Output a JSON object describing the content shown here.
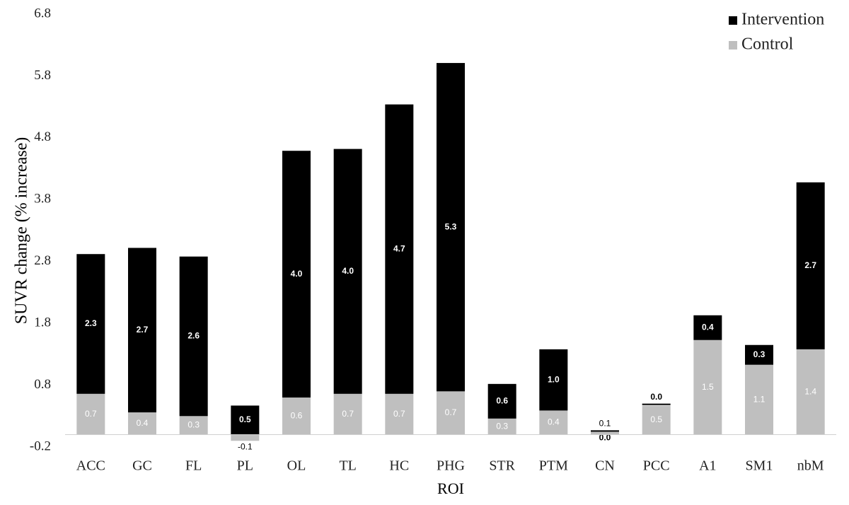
{
  "chart_data": {
    "type": "stacked_bar",
    "y_label": "SUVR change (% increase)",
    "x_label": "ROI",
    "categories": [
      "ACC",
      "GC",
      "FL",
      "PL",
      "OL",
      "TL",
      "HC",
      "PHG",
      "STR",
      "PTM",
      "CN",
      "PCC",
      "A1",
      "SM1",
      "nbM"
    ],
    "series": [
      {
        "name": "Control",
        "color": "#bfbfbf",
        "values": [
          0.66,
          0.36,
          0.3,
          -0.1,
          0.6,
          0.66,
          0.66,
          0.7,
          0.26,
          0.39,
          0.07,
          0.47,
          1.53,
          1.13,
          1.38
        ],
        "value_labels": [
          "0.7",
          "0.4",
          "0.3",
          "-0.1",
          "0.6",
          "0.7",
          "0.7",
          "0.7",
          "0.3",
          "0.4",
          "0.1",
          "0.5",
          "1.5",
          "1.1",
          "1.4"
        ]
      },
      {
        "name": "Intervention",
        "color": "#000000",
        "values": [
          2.26,
          2.66,
          2.58,
          0.47,
          3.99,
          3.96,
          4.68,
          5.31,
          0.56,
          0.99,
          0,
          0.02,
          0.4,
          0.32,
          2.7
        ],
        "value_labels": [
          "2.3",
          "2.7",
          "2.6",
          "0.5",
          "4.0",
          "4.0",
          "4.7",
          "5.3",
          "0.6",
          "1.0",
          "0.0",
          "0.0",
          "0.4",
          "0.3",
          "2.7"
        ]
      }
    ],
    "ylim": [
      -0.2,
      6.8
    ],
    "yticks": [
      -0.2,
      0.8,
      1.8,
      2.8,
      3.8,
      4.8,
      5.8,
      6.8
    ],
    "legend": "top-right"
  }
}
